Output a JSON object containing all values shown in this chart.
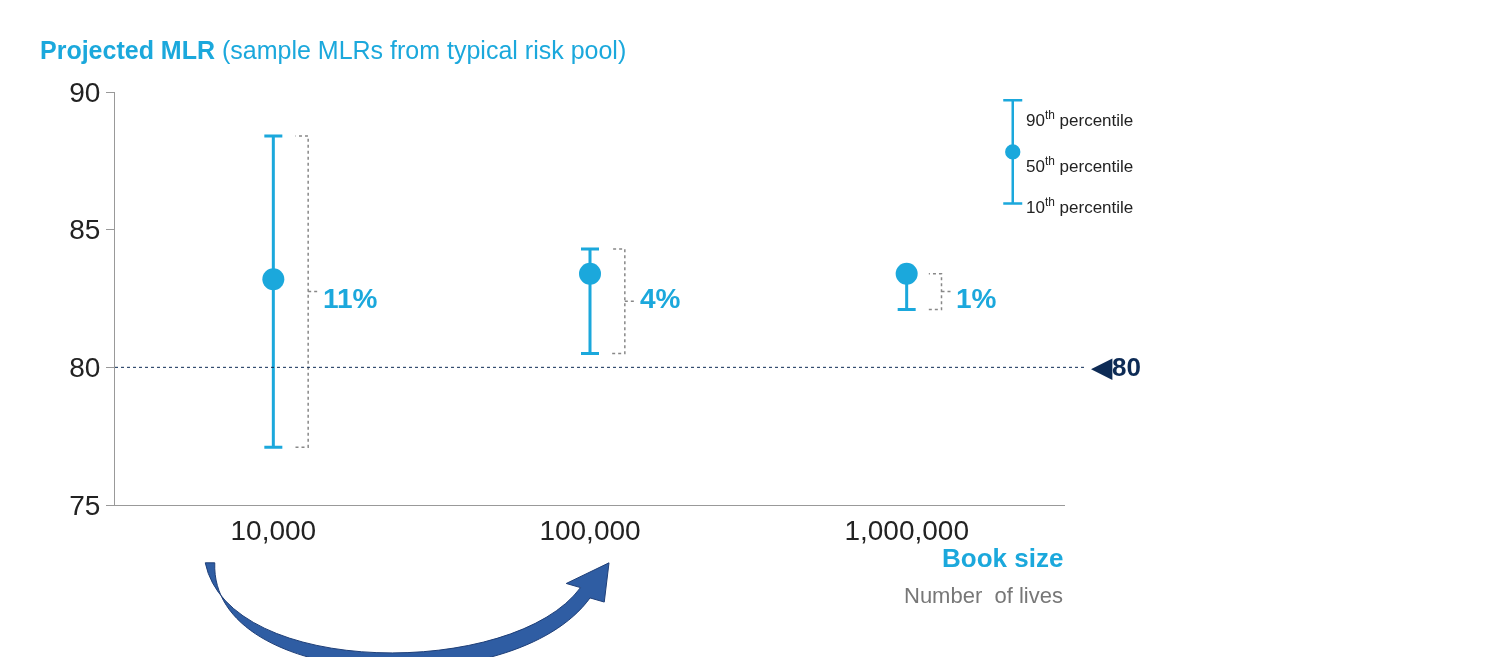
{
  "chart_data": {
    "type": "scatter",
    "title": "Projected MLR",
    "subtitle": "(sample MLRs from typical risk pool)",
    "xlabel": "Book size",
    "categories": [
      "10,000",
      "100,000",
      "1,000,000"
    ],
    "series": [
      {
        "color": "#1ba8dc",
        "values": [
          83.2,
          83.4,
          83.4
        ],
        "errors": [
          [
            77.1,
            88.4
          ],
          [
            80.5,
            84.3
          ],
          [
            82.1,
            83.4
          ]
        ]
      }
    ],
    "ylim": [
      75,
      90
    ],
    "yticks": [
      75,
      80,
      85,
      90
    ],
    "marker": "circle",
    "ref_lines": [
      {
        "axis": "y",
        "value": 80,
        "label": "◀80",
        "color": "#0d2b55",
        "line_style": "dotted"
      }
    ],
    "annotations": [
      {
        "text": "11%",
        "x": "10,000",
        "y": 82.5
      },
      {
        "text": "4%",
        "x": "100,000",
        "y": 82.5
      },
      {
        "text": "1%",
        "x": "1,000,000",
        "y": 82.5
      },
      "90$^{th}$ percentile",
      "50$^{th}$ percentile",
      "10$^{th}$ percentile",
      "Number  of lives"
    ]
  }
}
